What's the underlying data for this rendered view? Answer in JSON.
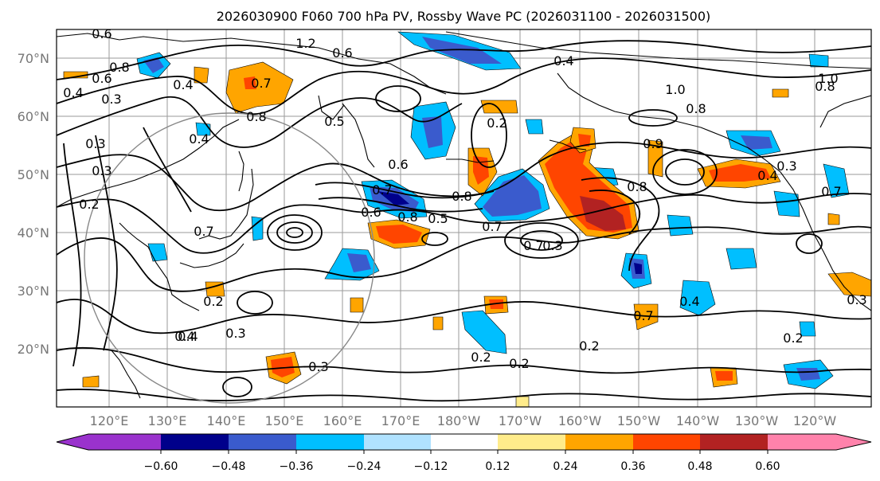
{
  "title": "2026030900 F060 700 hPa PV, Rossby Wave PC (2026031100 - 2026031500)",
  "lat_labels": [
    "20°N",
    "30°N",
    "40°N",
    "50°N",
    "60°N",
    "70°N"
  ],
  "lat_values": [
    20,
    30,
    40,
    50,
    60,
    70
  ],
  "lon_labels": [
    "120°E",
    "130°E",
    "140°E",
    "150°E",
    "160°E",
    "170°E",
    "180°W",
    "170°W",
    "160°W",
    "150°W",
    "140°W",
    "130°W",
    "120°W"
  ],
  "colorbar": {
    "tick_labels": [
      "−0.60",
      "−0.48",
      "−0.36",
      "−0.24",
      "−0.12",
      "0.12",
      "0.24",
      "0.36",
      "0.48",
      "0.60"
    ],
    "colors": [
      "#9a32cd",
      "#00008b",
      "#3a5bcd",
      "#00bfff",
      "#b0e2ff",
      "#ffffff",
      "#ffec8b",
      "#ffa500",
      "#ff4500",
      "#b22222",
      "#ff82ab"
    ]
  },
  "contour_labels": [
    "0.6",
    "1.2",
    "0.6",
    "0.8",
    "0.4",
    "0.6",
    "0.3",
    "0.7",
    "0.4",
    "0.8",
    "0.5",
    "0.2",
    "0.3",
    "0.4",
    "0.3",
    "0.7",
    "0.6",
    "0.5",
    "0.7",
    "0.8",
    "0.6",
    "0.8",
    "0.7",
    "0.7",
    "0.3",
    "0.2",
    "0.4",
    "0.3",
    "0.3",
    "0.2",
    "0.2",
    "0.2",
    "0.4",
    "0.7",
    "1.0",
    "0.8",
    "0.8",
    "0.9",
    "0.3",
    "0.7",
    "0.4",
    "0.3",
    "0.2",
    "0.4",
    "0.8",
    "1.0",
    "0.4",
    "0.2"
  ]
}
